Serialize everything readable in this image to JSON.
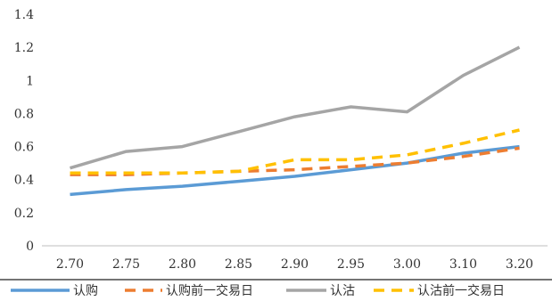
{
  "chart_data": {
    "type": "line",
    "title": "",
    "xlabel": "",
    "ylabel": "",
    "categories": [
      "2.70",
      "2.75",
      "2.80",
      "2.85",
      "2.90",
      "2.95",
      "3.00",
      "3.10",
      "3.20"
    ],
    "y_ticks": [
      "0",
      "0.2",
      "0.4",
      "0.6",
      "0.8",
      "1",
      "1.2",
      "1.4"
    ],
    "ylim": [
      0,
      1.4
    ],
    "grid": false,
    "legend_position": "bottom",
    "series": [
      {
        "name": "认购",
        "color": "#5B9BD5",
        "dash": "solid",
        "values": [
          0.31,
          0.34,
          0.36,
          0.39,
          0.42,
          0.46,
          0.5,
          0.56,
          0.6
        ]
      },
      {
        "name": "认购前一交易日",
        "color": "#ED7D31",
        "dash": "dash",
        "values": [
          0.43,
          0.43,
          0.44,
          0.45,
          0.46,
          0.48,
          0.5,
          0.54,
          0.59
        ]
      },
      {
        "name": "认沽",
        "color": "#A5A5A5",
        "dash": "solid",
        "values": [
          0.47,
          0.57,
          0.6,
          0.69,
          0.78,
          0.84,
          0.81,
          1.03,
          1.2
        ]
      },
      {
        "name": "认沽前一交易日",
        "color": "#FFC000",
        "dash": "dash",
        "values": [
          0.44,
          0.44,
          0.44,
          0.45,
          0.52,
          0.52,
          0.55,
          0.62,
          0.7
        ]
      }
    ]
  }
}
